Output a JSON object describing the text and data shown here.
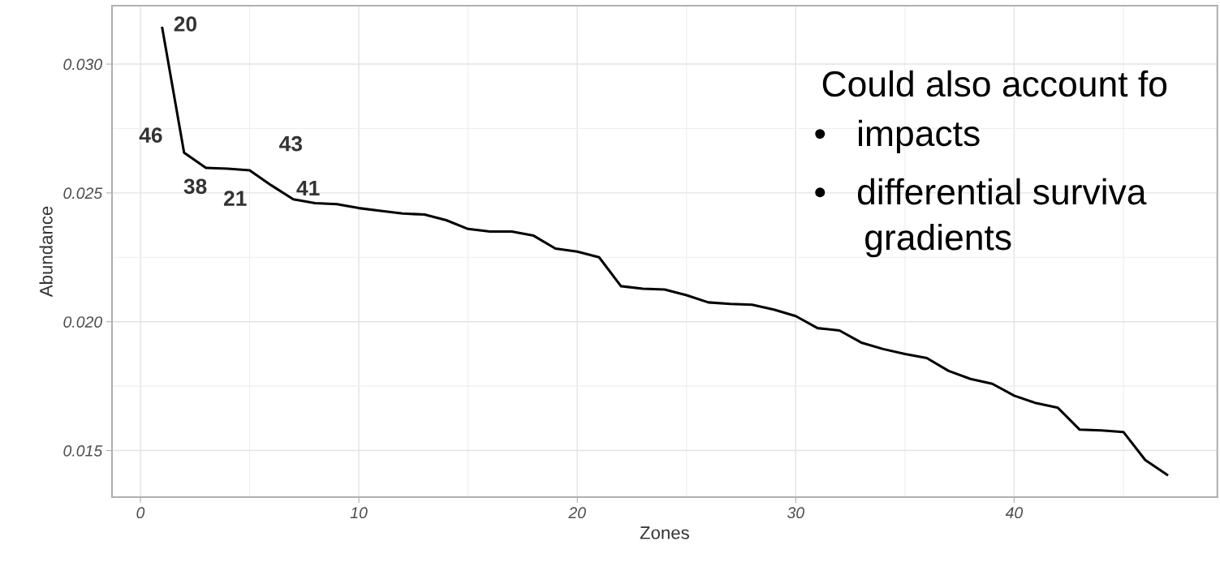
{
  "chart_data": {
    "type": "line",
    "x": [
      1,
      2,
      3,
      4,
      5,
      6,
      7,
      8,
      9,
      10,
      11,
      12,
      13,
      14,
      15,
      16,
      17,
      18,
      19,
      20,
      21,
      22,
      23,
      24,
      25,
      26,
      27,
      28,
      29,
      30,
      31,
      32,
      33,
      34,
      35,
      36,
      37,
      38,
      39,
      40,
      41,
      42,
      43,
      44,
      45,
      46,
      47
    ],
    "series": [
      {
        "color": "#000000",
        "values": [
          0.0314,
          0.02656,
          0.02597,
          0.02594,
          0.02588,
          0.02529,
          0.02475,
          0.0246,
          0.02456,
          0.02441,
          0.0243,
          0.0242,
          0.02416,
          0.02394,
          0.0236,
          0.0235,
          0.0235,
          0.02334,
          0.02284,
          0.02272,
          0.0225,
          0.02138,
          0.02128,
          0.02125,
          0.02103,
          0.02075,
          0.02069,
          0.02066,
          0.02047,
          0.02022,
          0.01975,
          0.01966,
          0.01919,
          0.01894,
          0.01875,
          0.01859,
          0.01809,
          0.01778,
          0.01759,
          0.01713,
          0.01684,
          0.01666,
          0.01581,
          0.01578,
          0.01572,
          0.01463,
          0.01406
        ]
      }
    ],
    "xlabel": "Zones",
    "ylabel": "Abundance",
    "xlim": [
      -1.3,
      49.3
    ],
    "ylim": [
      0.01319,
      0.03227
    ],
    "xticks": [
      0,
      10,
      20,
      30,
      40
    ],
    "yticks": [
      {
        "value": 0.015,
        "label": "0.015"
      },
      {
        "value": 0.02,
        "label": "0.020"
      },
      {
        "value": 0.025,
        "label": "0.025"
      },
      {
        "value": 0.03,
        "label": "0.030"
      }
    ],
    "grid": true,
    "line_style": "solid",
    "marker": "none",
    "annotations": [
      {
        "text": "20",
        "x": 1,
        "y": 0.0314
      },
      {
        "text": "46",
        "x": 2,
        "y": 0.02656
      },
      {
        "text": "38",
        "x": 3,
        "y": 0.02597
      },
      {
        "text": "21",
        "x": 4,
        "y": 0.02594
      },
      {
        "text": "43",
        "x": 5,
        "y": 0.02588
      },
      {
        "text": "41",
        "x": 6,
        "y": 0.02529
      },
      "Could also account fo",
      "•   impacts",
      "•   differential surviva",
      "     gradients"
    ]
  }
}
